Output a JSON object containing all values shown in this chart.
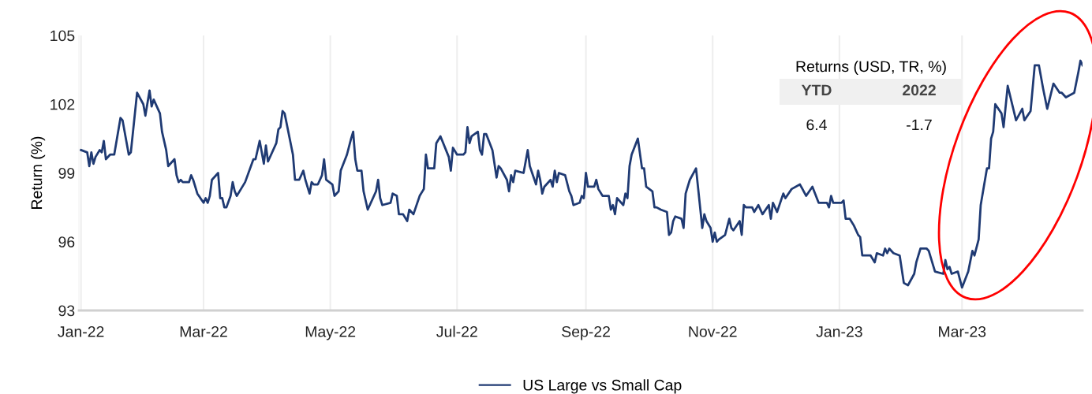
{
  "chart_data": {
    "type": "line",
    "ylabel": "Return (%)",
    "x": [
      "2022-01-01",
      "2022-01-04",
      "2022-01-05",
      "2022-01-06",
      "2022-01-07",
      "2022-01-08",
      "2022-01-10",
      "2022-01-11",
      "2022-01-12",
      "2022-01-13",
      "2022-01-15",
      "2022-01-17",
      "2022-01-20",
      "2022-01-21",
      "2022-01-24",
      "2022-01-25",
      "2022-01-28",
      "2022-01-31",
      "2022-02-01",
      "2022-02-03",
      "2022-02-04",
      "2022-02-05",
      "2022-02-08",
      "2022-02-09",
      "2022-02-11",
      "2022-02-12",
      "2022-02-15",
      "2022-02-16",
      "2022-02-17",
      "2022-02-18",
      "2022-02-19",
      "2022-02-22",
      "2022-02-23",
      "2022-02-24",
      "2022-02-26",
      "2022-03-01",
      "2022-03-02",
      "2022-03-03",
      "2022-03-04",
      "2022-03-05",
      "2022-03-08",
      "2022-03-09",
      "2022-03-10",
      "2022-03-11",
      "2022-03-12",
      "2022-03-14",
      "2022-03-15",
      "2022-03-16",
      "2022-03-17",
      "2022-03-19",
      "2022-03-21",
      "2022-03-25",
      "2022-03-26",
      "2022-03-28",
      "2022-03-30",
      "2022-03-31",
      "2022-04-01",
      "2022-04-05",
      "2022-04-06",
      "2022-04-07",
      "2022-04-08",
      "2022-04-09",
      "2022-04-13",
      "2022-04-14",
      "2022-04-16",
      "2022-04-18",
      "2022-04-19",
      "2022-04-21",
      "2022-04-22",
      "2022-04-23",
      "2022-04-25",
      "2022-04-27",
      "2022-04-28",
      "2022-04-29",
      "2022-05-02",
      "2022-05-03",
      "2022-05-05",
      "2022-05-06",
      "2022-05-09",
      "2022-05-11",
      "2022-05-12",
      "2022-05-13",
      "2022-05-14",
      "2022-05-16",
      "2022-05-17",
      "2022-05-19",
      "2022-05-23",
      "2022-05-24",
      "2022-05-25",
      "2022-05-26",
      "2022-05-30",
      "2022-05-31",
      "2022-06-02",
      "2022-06-03",
      "2022-06-05",
      "2022-06-07",
      "2022-06-08",
      "2022-06-10",
      "2022-06-13",
      "2022-06-15",
      "2022-06-16",
      "2022-06-17",
      "2022-06-20",
      "2022-06-21",
      "2022-06-23",
      "2022-06-27",
      "2022-06-28",
      "2022-06-29",
      "2022-07-01",
      "2022-07-04",
      "2022-07-05",
      "2022-07-06",
      "2022-07-07",
      "2022-07-08",
      "2022-07-11",
      "2022-07-12",
      "2022-07-13",
      "2022-07-14",
      "2022-07-15",
      "2022-07-18",
      "2022-07-20",
      "2022-07-21",
      "2022-07-22",
      "2022-07-25",
      "2022-07-26",
      "2022-07-27",
      "2022-07-28",
      "2022-07-29",
      "2022-08-02",
      "2022-08-04",
      "2022-08-05",
      "2022-08-08",
      "2022-08-09",
      "2022-08-10",
      "2022-08-11",
      "2022-08-12",
      "2022-08-15",
      "2022-08-16",
      "2022-08-17",
      "2022-08-18",
      "2022-08-19",
      "2022-08-22",
      "2022-08-24",
      "2022-08-25",
      "2022-08-26",
      "2022-08-29",
      "2022-08-30",
      "2022-08-31",
      "2022-09-01",
      "2022-09-02",
      "2022-09-05",
      "2022-09-06",
      "2022-09-07",
      "2022-09-09",
      "2022-09-12",
      "2022-09-13",
      "2022-09-14",
      "2022-09-15",
      "2022-09-16",
      "2022-09-19",
      "2022-09-20",
      "2022-09-21",
      "2022-09-22",
      "2022-09-23",
      "2022-09-26",
      "2022-09-28",
      "2022-09-29",
      "2022-09-30",
      "2022-10-03",
      "2022-10-04",
      "2022-10-05",
      "2022-10-07",
      "2022-10-10",
      "2022-10-11",
      "2022-10-12",
      "2022-10-13",
      "2022-10-14",
      "2022-10-17",
      "2022-10-18",
      "2022-10-19",
      "2022-10-20",
      "2022-10-21",
      "2022-10-24",
      "2022-10-27",
      "2022-10-28",
      "2022-10-29",
      "2022-10-31",
      "2022-11-01",
      "2022-11-02",
      "2022-11-03",
      "2022-11-04",
      "2022-11-07",
      "2022-11-09",
      "2022-11-10",
      "2022-11-11",
      "2022-11-14",
      "2022-11-15",
      "2022-11-16",
      "2022-11-17",
      "2022-11-20",
      "2022-11-21",
      "2022-11-23",
      "2022-11-25",
      "2022-11-28",
      "2022-11-29",
      "2022-11-30",
      "2022-12-02",
      "2022-12-05",
      "2022-12-06",
      "2022-12-09",
      "2022-12-13",
      "2022-12-16",
      "2022-12-19",
      "2022-12-22",
      "2022-12-26",
      "2022-12-27",
      "2022-12-28",
      "2022-12-29",
      "2023-01-02",
      "2023-01-03",
      "2023-01-04",
      "2023-01-06",
      "2023-01-08",
      "2023-01-10",
      "2023-01-11",
      "2023-01-12",
      "2023-01-16",
      "2023-01-18",
      "2023-01-19",
      "2023-01-22",
      "2023-01-23",
      "2023-01-24",
      "2023-01-25",
      "2023-01-27",
      "2023-01-30",
      "2023-02-01",
      "2023-02-03",
      "2023-02-06",
      "2023-02-07",
      "2023-02-09",
      "2023-02-12",
      "2023-02-13",
      "2023-02-16",
      "2023-02-20",
      "2023-02-21",
      "2023-02-22",
      "2023-02-23",
      "2023-02-24",
      "2023-02-27",
      "2023-03-01",
      "2023-03-04",
      "2023-03-06",
      "2023-03-07",
      "2023-03-09",
      "2023-03-10",
      "2023-03-13",
      "2023-03-14",
      "2023-03-15",
      "2023-03-16",
      "2023-03-17",
      "2023-03-20",
      "2023-03-21",
      "2023-03-23",
      "2023-03-27",
      "2023-03-30",
      "2023-03-31",
      "2023-04-03",
      "2023-04-04",
      "2023-04-05",
      "2023-04-07",
      "2023-04-09",
      "2023-04-11",
      "2023-04-14",
      "2023-04-17",
      "2023-04-18",
      "2023-04-20",
      "2023-04-24",
      "2023-04-26",
      "2023-04-27",
      "2023-04-28"
    ],
    "series": [
      {
        "name": "US Large vs Small Cap",
        "color": "#1f3a73",
        "values": [
          100.0,
          99.9,
          99.3,
          99.9,
          99.4,
          99.7,
          100.0,
          99.9,
          100.4,
          99.6,
          99.8,
          99.8,
          101.4,
          101.3,
          99.8,
          99.9,
          102.5,
          102.0,
          101.5,
          102.6,
          101.9,
          102.2,
          101.6,
          100.8,
          100.0,
          99.3,
          99.6,
          98.9,
          98.6,
          98.7,
          98.6,
          98.6,
          98.9,
          98.7,
          98.1,
          97.7,
          97.9,
          97.7,
          98.0,
          98.7,
          99.0,
          97.9,
          97.9,
          97.5,
          97.5,
          98.0,
          98.6,
          98.2,
          98.0,
          98.3,
          98.6,
          99.6,
          99.6,
          100.4,
          99.4,
          100.2,
          99.5,
          100.3,
          100.9,
          101.0,
          101.7,
          101.6,
          99.8,
          98.7,
          98.7,
          99.1,
          98.7,
          98.1,
          98.6,
          98.5,
          98.5,
          98.9,
          99.6,
          98.7,
          98.5,
          98.0,
          98.2,
          99.1,
          99.8,
          100.5,
          100.8,
          99.6,
          99.1,
          99.1,
          98.2,
          97.4,
          98.2,
          98.7,
          97.9,
          97.6,
          97.7,
          98.1,
          98.0,
          97.2,
          97.2,
          96.9,
          97.4,
          97.2,
          98.0,
          98.3,
          99.8,
          99.2,
          99.2,
          100.3,
          100.6,
          99.7,
          99.1,
          100.1,
          99.8,
          99.8,
          99.9,
          101.0,
          100.3,
          100.6,
          100.8,
          100.0,
          99.8,
          100.7,
          100.7,
          100.0,
          98.8,
          99.3,
          99.2,
          98.7,
          98.2,
          98.9,
          98.6,
          99.1,
          99.0,
          100.0,
          99.3,
          98.5,
          99.1,
          98.7,
          98.1,
          98.4,
          98.7,
          98.4,
          99.1,
          98.6,
          99.0,
          98.9,
          98.2,
          98.0,
          97.6,
          97.7,
          98.0,
          97.9,
          99.0,
          98.4,
          98.4,
          98.7,
          98.3,
          98.0,
          98.0,
          97.4,
          97.6,
          97.2,
          97.9,
          97.6,
          98.1,
          97.9,
          99.3,
          99.8,
          100.5,
          99.2,
          99.2,
          98.4,
          98.2,
          97.5,
          97.5,
          97.4,
          97.3,
          96.3,
          96.4,
          96.9,
          97.1,
          97.0,
          96.6,
          98.1,
          98.4,
          98.7,
          99.2,
          96.6,
          97.2,
          96.9,
          96.6,
          96.0,
          96.4,
          96.0,
          96.1,
          96.3,
          97.0,
          96.6,
          96.5,
          96.9,
          96.3,
          97.6,
          97.5,
          97.5,
          97.3,
          97.6,
          97.2,
          97.6,
          97.0,
          97.7,
          97.3,
          98.1,
          97.9,
          98.3,
          98.5,
          98.0,
          98.4,
          97.7,
          97.7,
          97.5,
          98.0,
          97.7,
          97.7,
          97.8,
          97.0,
          97.0,
          96.7,
          96.3,
          96.2,
          95.4,
          95.4,
          95.1,
          95.5,
          95.4,
          95.7,
          95.5,
          95.7,
          95.5,
          95.4,
          94.2,
          94.1,
          94.6,
          95.1,
          95.7,
          95.7,
          95.6,
          94.7,
          94.6,
          95.2,
          94.8,
          94.9,
          94.6,
          94.7,
          94.0,
          94.7,
          95.6,
          95.4,
          96.1,
          97.6,
          99.2,
          99.2,
          100.5,
          100.8,
          102.0,
          101.6,
          101.0,
          102.8,
          101.3,
          101.8,
          101.3,
          101.7,
          102.7,
          103.7,
          103.7,
          102.7,
          101.8,
          102.9,
          102.5,
          102.5,
          102.3,
          102.5,
          103.4,
          103.9,
          103.7
        ]
      }
    ],
    "xlim": [
      "2021-12-31",
      "2023-04-28"
    ],
    "xticks": [
      {
        "value": "2022-01-01",
        "label": "Jan-22"
      },
      {
        "value": "2022-03-01",
        "label": "Mar-22"
      },
      {
        "value": "2022-05-01",
        "label": "May-22"
      },
      {
        "value": "2022-07-01",
        "label": "Jul-22"
      },
      {
        "value": "2022-09-01",
        "label": "Sep-22"
      },
      {
        "value": "2022-11-01",
        "label": "Nov-22"
      },
      {
        "value": "2023-01-01",
        "label": "Jan-23"
      },
      {
        "value": "2023-03-01",
        "label": "Mar-23"
      }
    ],
    "ylim": [
      93,
      105
    ],
    "yticks": [
      93,
      96,
      99,
      102,
      105
    ],
    "grid": "x",
    "legend": "bottom",
    "marker": "none",
    "line_style": "solid",
    "annotations": [
      "Returns (USD, TR, %)",
      "YTD",
      "2022",
      "6.4",
      "-1.7"
    ]
  }
}
